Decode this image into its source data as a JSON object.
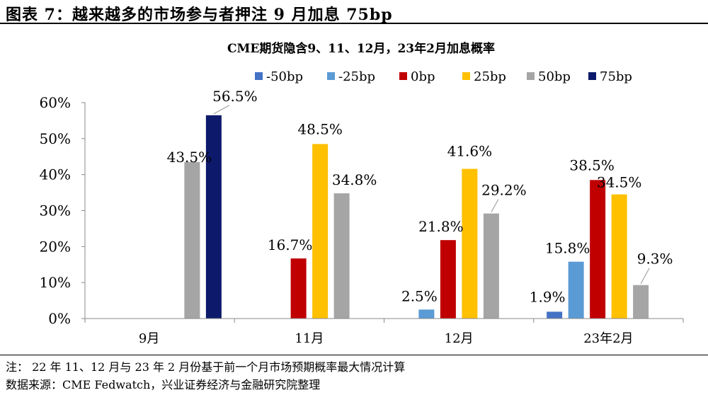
{
  "figure": {
    "title": "图表 7：越来越多的市场参与者押注 9 月加息 75bp",
    "note": "注：  22 年 11、12 月与 23 年 2 月份基于前一个月市场预期概率最大情况计算",
    "source": "数据来源：CME Fedwatch，兴业证券经济与金融研究院整理"
  },
  "chart_data": {
    "type": "bar",
    "title": "CME期货隐含9、11、12月，23年2月加息概率",
    "categories": [
      "9月",
      "11月",
      "12月",
      "23年2月"
    ],
    "ylim": [
      0,
      60
    ],
    "yticks": [
      "0%",
      "10%",
      "20%",
      "30%",
      "40%",
      "50%",
      "60%"
    ],
    "legend_position": "top",
    "series": [
      {
        "name": "-50bp",
        "color": "#4472c4",
        "values": [
          null,
          null,
          null,
          1.9
        ],
        "labels": [
          "",
          "",
          "",
          "1.9%"
        ]
      },
      {
        "name": "-25bp",
        "color": "#5b9bd5",
        "values": [
          null,
          null,
          2.5,
          15.8
        ],
        "labels": [
          "",
          "",
          "2.5%",
          "15.8%"
        ]
      },
      {
        "name": "0bp",
        "color": "#c00000",
        "values": [
          null,
          16.7,
          21.8,
          38.5
        ],
        "labels": [
          "",
          "16.7%",
          "21.8%",
          "38.5%"
        ]
      },
      {
        "name": "25bp",
        "color": "#ffc000",
        "values": [
          null,
          48.5,
          41.6,
          34.5
        ],
        "labels": [
          "",
          "48.5%",
          "41.6%",
          "34.5%"
        ]
      },
      {
        "name": "50bp",
        "color": "#a5a5a5",
        "values": [
          43.5,
          34.8,
          29.2,
          9.3
        ],
        "labels": [
          "43.5%",
          "34.8%",
          "29.2%",
          "9.3%"
        ]
      },
      {
        "name": "75bp",
        "color": "#0d1a6b",
        "values": [
          56.5,
          null,
          null,
          null
        ],
        "labels": [
          "56.5%",
          "",
          "",
          ""
        ]
      }
    ]
  }
}
